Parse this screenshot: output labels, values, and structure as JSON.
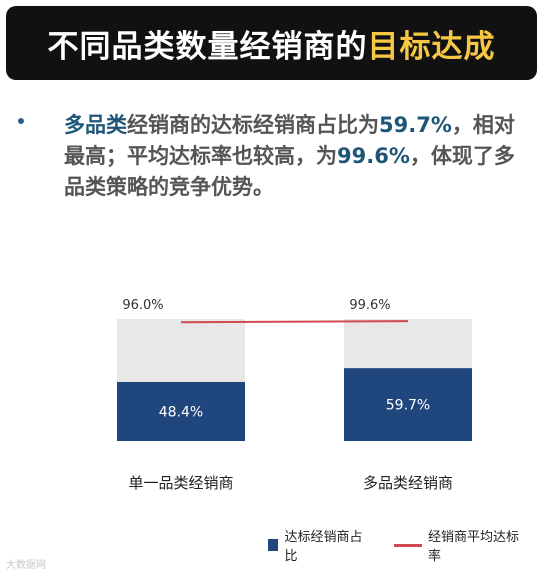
{
  "title": {
    "main": "不同品类数量经销商的",
    "accent": "目标达成",
    "accent_color": "#f6c645"
  },
  "summary": {
    "parts": [
      "多品类",
      "经销商的达标经销商占比为",
      "59.7%",
      "，相对最高；平均达标率也较高，为",
      "99.6%",
      "，体现了多品类策略的竞争优势。"
    ]
  },
  "chart_data": {
    "type": "bar",
    "categories": [
      "单一品类经销商",
      "多品类经销商"
    ],
    "series": [
      {
        "name": "达标经销商占比",
        "values": [
          48.4,
          59.7
        ],
        "color": "#1f467d"
      },
      {
        "name": "经销商平均达标率",
        "values": [
          96.0,
          99.6
        ],
        "type": "line",
        "color": "#d04a52"
      }
    ],
    "value_labels_bar": [
      "48.4%",
      "59.7%"
    ],
    "value_labels_line": [
      "96.0%",
      "99.6%"
    ],
    "background_color": "#e8e8e8",
    "ylim": [
      0,
      100
    ],
    "legend_position": "bottom-right"
  },
  "legend": {
    "bar_label": "达标经销商占比",
    "line_label": "经销商平均达标率"
  },
  "watermark": "大数据网"
}
